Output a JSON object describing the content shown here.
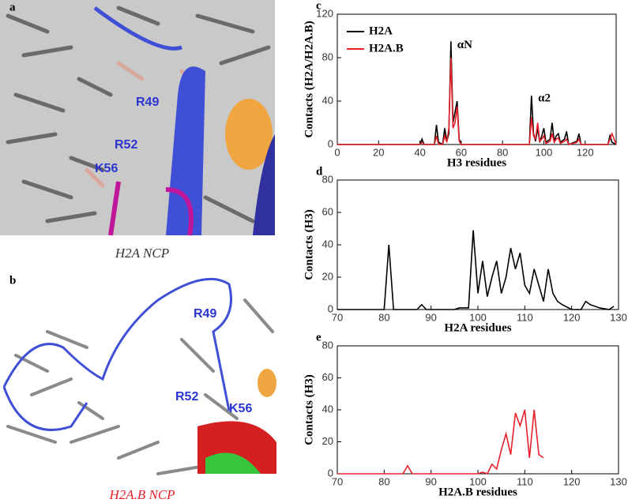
{
  "images": [
    {
      "panel": "a",
      "labels": [
        "R49",
        "R52",
        "K56"
      ],
      "caption": "H2A NCP"
    },
    {
      "panel": "b",
      "labels": [
        "R49",
        "R52",
        "K56"
      ],
      "caption": "H2A.B NCP"
    }
  ],
  "chart_data": [
    {
      "type": "line",
      "panel": "c",
      "y_label": "Contacts (H2A/H2A.B)",
      "x_label": "H3 residues",
      "xlim": [
        0,
        135
      ],
      "xticks": [
        0,
        20,
        40,
        60,
        80,
        100,
        120
      ],
      "ylim": [
        0,
        120
      ],
      "yticks": [
        0,
        40,
        80,
        120
      ],
      "legend": "upper left",
      "annotations": [
        "αN",
        "α2"
      ],
      "x": [
        0,
        40,
        41,
        42,
        47,
        48,
        49,
        51,
        52,
        53,
        54,
        55,
        56,
        57,
        58,
        59,
        60,
        93,
        94,
        95,
        96,
        97,
        98,
        99,
        100,
        101,
        103,
        104,
        105,
        106,
        107,
        108,
        110,
        111,
        112,
        116,
        117,
        118,
        131,
        132,
        133,
        135
      ],
      "series": [
        {
          "name": "H2A",
          "color": "#000000",
          "values": [
            0,
            0,
            5,
            0,
            0,
            18,
            2,
            0,
            15,
            3,
            10,
            95,
            20,
            30,
            40,
            5,
            0,
            0,
            45,
            10,
            3,
            15,
            2,
            8,
            15,
            2,
            5,
            20,
            3,
            8,
            10,
            2,
            5,
            12,
            0,
            3,
            10,
            0,
            0,
            8,
            2,
            0
          ]
        },
        {
          "name": "H2A.B",
          "color": "#e8202a",
          "values": [
            0,
            0,
            2,
            0,
            0,
            8,
            0,
            0,
            8,
            2,
            15,
            80,
            15,
            20,
            35,
            3,
            0,
            0,
            25,
            8,
            5,
            20,
            3,
            5,
            8,
            1,
            3,
            10,
            2,
            5,
            6,
            1,
            3,
            5,
            0,
            2,
            5,
            0,
            0,
            5,
            10,
            0
          ]
        }
      ]
    },
    {
      "type": "line",
      "panel": "d",
      "y_label": "Contacts (H3)",
      "x_label": "H2A residues",
      "xlim": [
        70,
        130
      ],
      "xticks": [
        70,
        80,
        90,
        100,
        110,
        120,
        130
      ],
      "ylim": [
        0,
        80
      ],
      "yticks": [
        0,
        20,
        40,
        60,
        80
      ],
      "x": [
        70,
        80,
        81,
        82,
        87,
        88,
        89,
        95,
        96,
        98,
        99,
        100,
        101,
        102,
        103,
        104,
        105,
        106,
        107,
        108,
        109,
        110,
        111,
        112,
        113,
        114,
        115,
        116,
        117,
        118,
        120,
        122,
        123,
        124,
        126,
        128,
        129
      ],
      "series": [
        {
          "color": "#000000",
          "values": [
            0,
            0,
            40,
            0,
            0,
            3,
            0,
            0,
            1,
            1,
            49,
            10,
            30,
            8,
            20,
            30,
            10,
            20,
            38,
            25,
            35,
            15,
            10,
            25,
            15,
            5,
            25,
            10,
            5,
            3,
            0,
            0,
            5,
            3,
            1,
            0,
            2
          ]
        }
      ]
    },
    {
      "type": "line",
      "panel": "e",
      "y_label": "Contacts (H3)",
      "x_label": "H2A.B residues",
      "xlim": [
        70,
        130
      ],
      "xticks": [
        70,
        80,
        90,
        100,
        110,
        120,
        130
      ],
      "ylim": [
        0,
        80
      ],
      "yticks": [
        0,
        20,
        40,
        60,
        80
      ],
      "x": [
        70,
        84,
        85,
        86,
        100,
        101,
        102,
        103,
        104,
        105,
        106,
        107,
        108,
        109,
        110,
        111,
        112,
        113,
        114
      ],
      "series": [
        {
          "color": "#e8202a",
          "values": [
            0,
            0,
            5,
            0,
            0,
            1,
            0,
            6,
            3,
            15,
            25,
            12,
            38,
            30,
            40,
            10,
            40,
            12,
            10
          ]
        }
      ]
    }
  ]
}
